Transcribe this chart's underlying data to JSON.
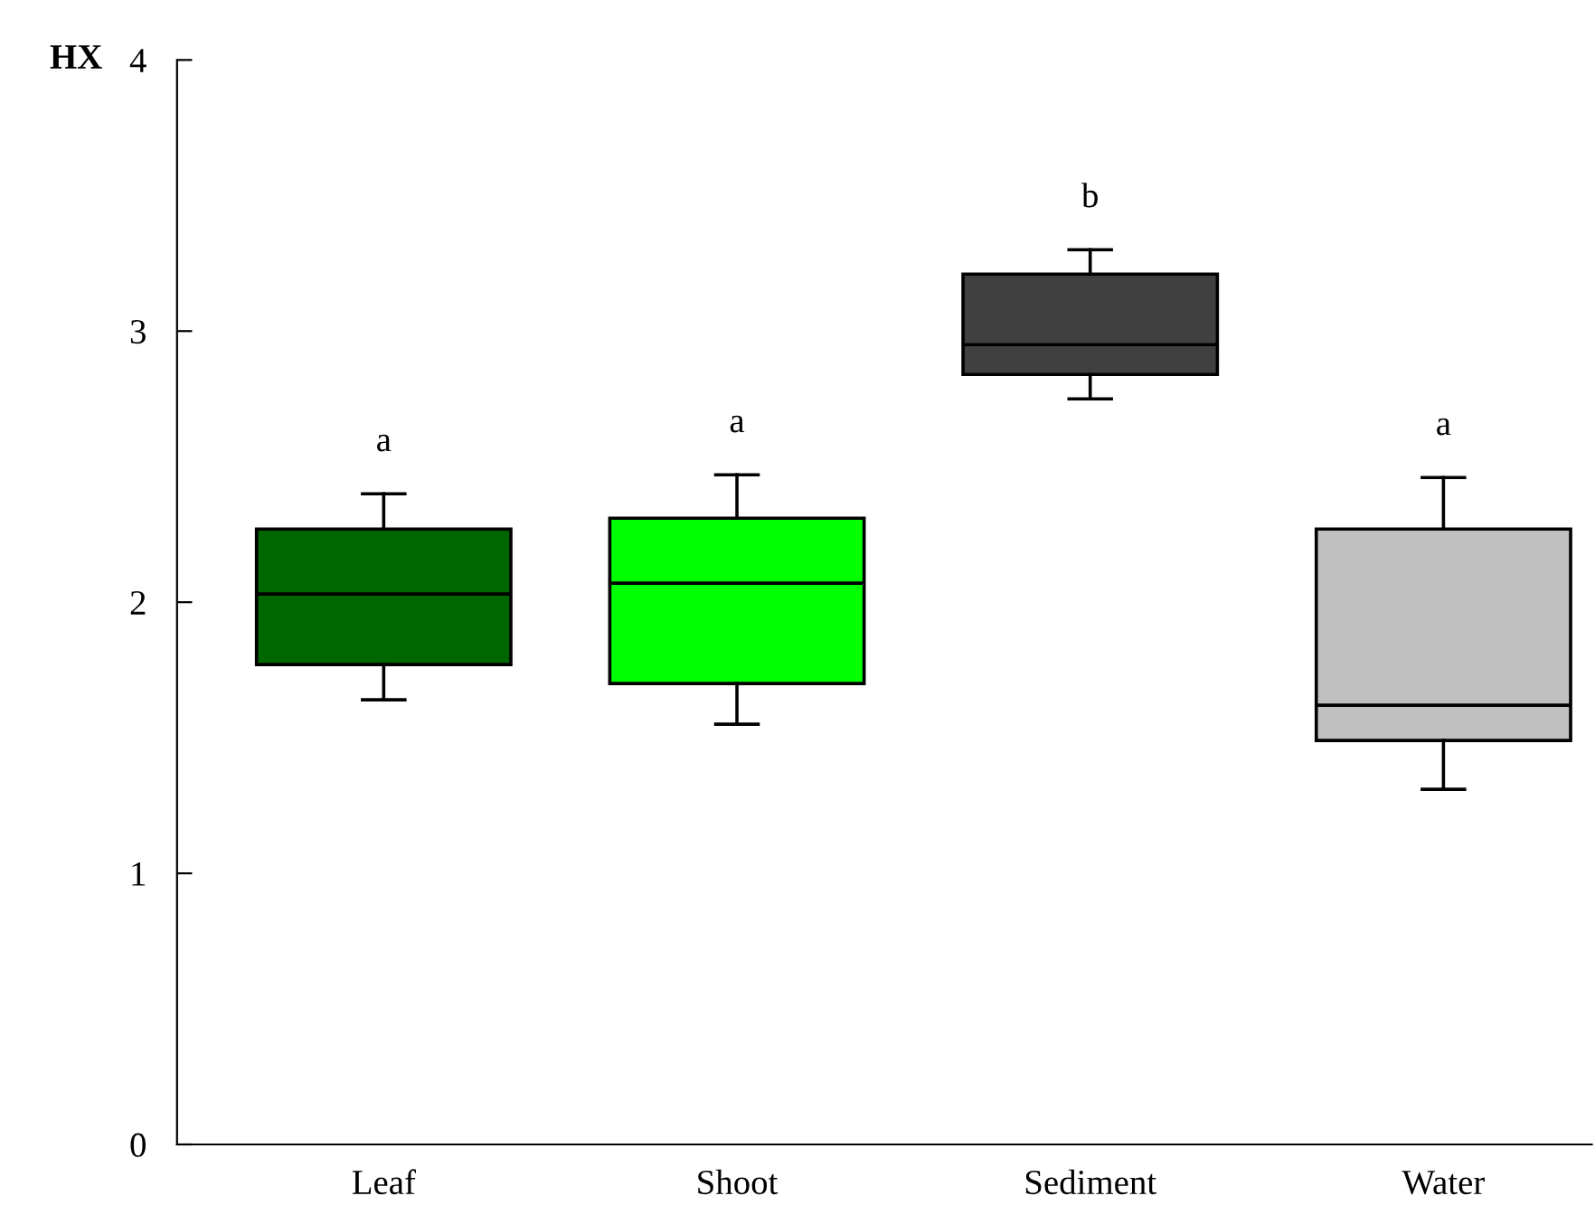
{
  "chart_data": {
    "type": "box",
    "ylabel": "HX",
    "categories": [
      "Leaf",
      "Shoot",
      "Sediment",
      "Water"
    ],
    "colors": [
      "#006600",
      "#00ff00",
      "#404040",
      "#c0c0c0"
    ],
    "boxes": [
      {
        "low": 1.64,
        "q1": 1.77,
        "median": 2.03,
        "q3": 2.27,
        "high": 2.4
      },
      {
        "low": 1.55,
        "q1": 1.7,
        "median": 2.07,
        "q3": 2.31,
        "high": 2.47
      },
      {
        "low": 2.75,
        "q1": 2.84,
        "median": 2.95,
        "q3": 3.21,
        "high": 3.3
      },
      {
        "low": 1.31,
        "q1": 1.49,
        "median": 1.62,
        "q3": 2.27,
        "high": 2.46
      }
    ],
    "ylim": [
      0,
      4
    ],
    "yticks": [
      0,
      1,
      2,
      3,
      4
    ],
    "grid": false,
    "legend": false,
    "annotations": [
      "a",
      "a",
      "b",
      "a"
    ]
  }
}
